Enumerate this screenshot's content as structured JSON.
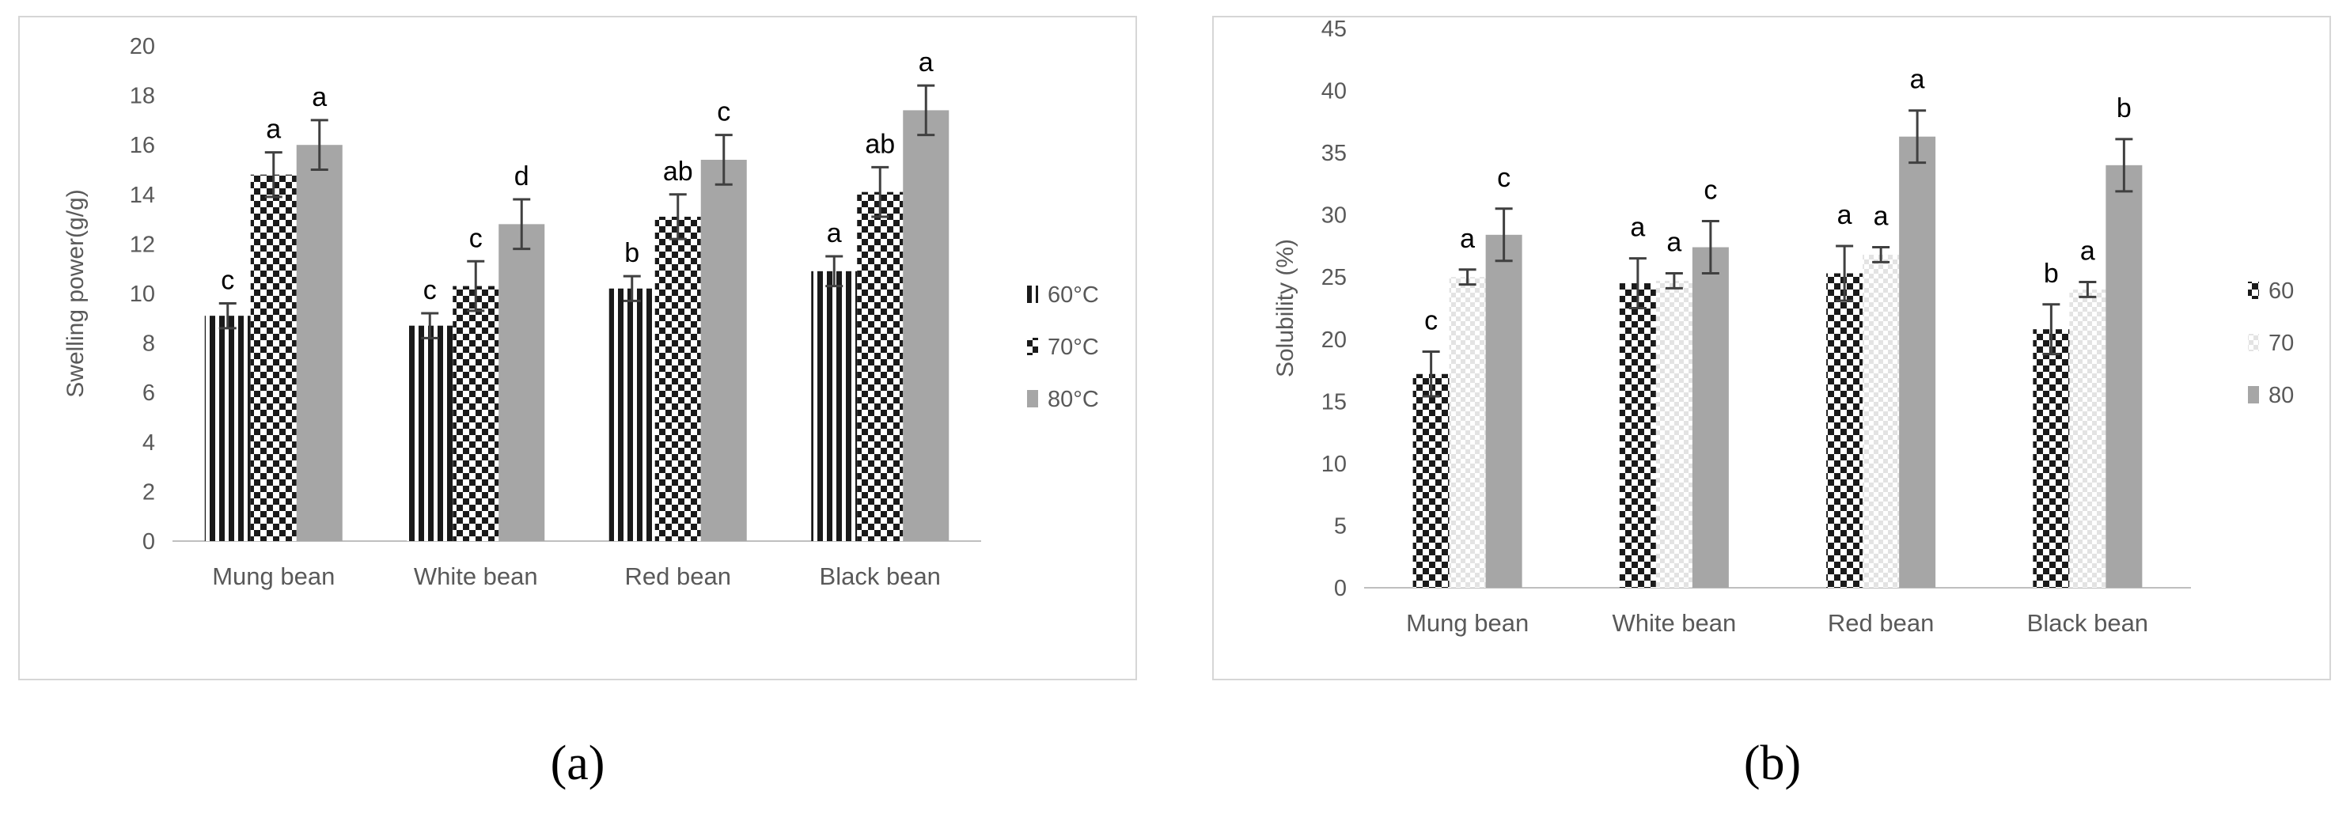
{
  "figure": {
    "caption_a": "(a)",
    "caption_b": "(b)"
  },
  "chart_data": [
    {
      "type": "bar",
      "title": "",
      "xlabel": "",
      "ylabel": "Swelling power(g/g)",
      "ylim": [
        0,
        20
      ],
      "ytick_step": 2,
      "grid": false,
      "legend_position": "right",
      "categories": [
        "Mung bean",
        "White  bean",
        "Red bean",
        "Black bean"
      ],
      "series": [
        {
          "name": "60°C",
          "pattern": "vstripes",
          "values": [
            9.1,
            8.7,
            10.2,
            10.9
          ],
          "errors": [
            0.5,
            0.5,
            0.5,
            0.6
          ],
          "letters": [
            "c",
            "c",
            "b",
            "a"
          ]
        },
        {
          "name": "70°C",
          "pattern": "checker",
          "values": [
            14.8,
            10.3,
            13.1,
            14.1
          ],
          "errors": [
            0.9,
            1.0,
            0.9,
            1.0
          ],
          "letters": [
            "a",
            "c",
            "ab",
            "ab"
          ]
        },
        {
          "name": "80°C",
          "pattern": "solid",
          "values": [
            16.0,
            12.8,
            15.4,
            17.4
          ],
          "errors": [
            1.0,
            1.0,
            1.0,
            1.0
          ],
          "letters": [
            "a",
            "d",
            "c",
            "a"
          ]
        }
      ],
      "colors": {
        "dark": "#1a1a1a",
        "gray": "#a6a6a6",
        "light": "#e6e6e6",
        "axis": "#bfbfbf",
        "text": "#595959",
        "error": "#404040"
      }
    },
    {
      "type": "bar",
      "title": "",
      "xlabel": "",
      "ylabel": "Solubility (%)",
      "ylim": [
        0,
        45
      ],
      "ytick_step": 5,
      "grid": false,
      "legend_position": "right",
      "categories": [
        "Mung bean",
        "White bean",
        "Red  bean",
        "Black bean"
      ],
      "series": [
        {
          "name": "60",
          "pattern": "checker",
          "values": [
            17.2,
            24.5,
            25.3,
            20.8
          ],
          "errors": [
            1.8,
            2.0,
            2.2,
            2.0
          ],
          "letters": [
            "c",
            "a",
            "a",
            "b"
          ]
        },
        {
          "name": "70",
          "pattern": "lightcheck",
          "values": [
            25.0,
            24.7,
            26.8,
            24.0
          ],
          "errors": [
            0.6,
            0.6,
            0.6,
            0.6
          ],
          "letters": [
            "a",
            "a",
            "a",
            "a"
          ]
        },
        {
          "name": "80",
          "pattern": "solid",
          "values": [
            28.4,
            27.4,
            36.3,
            34.0
          ],
          "errors": [
            2.1,
            2.1,
            2.1,
            2.1
          ],
          "letters": [
            "c",
            "c",
            "a",
            "b"
          ]
        }
      ],
      "colors": {
        "dark": "#1a1a1a",
        "gray": "#a6a6a6",
        "light": "#e6e6e6",
        "axis": "#bfbfbf",
        "text": "#595959",
        "error": "#404040"
      }
    }
  ]
}
